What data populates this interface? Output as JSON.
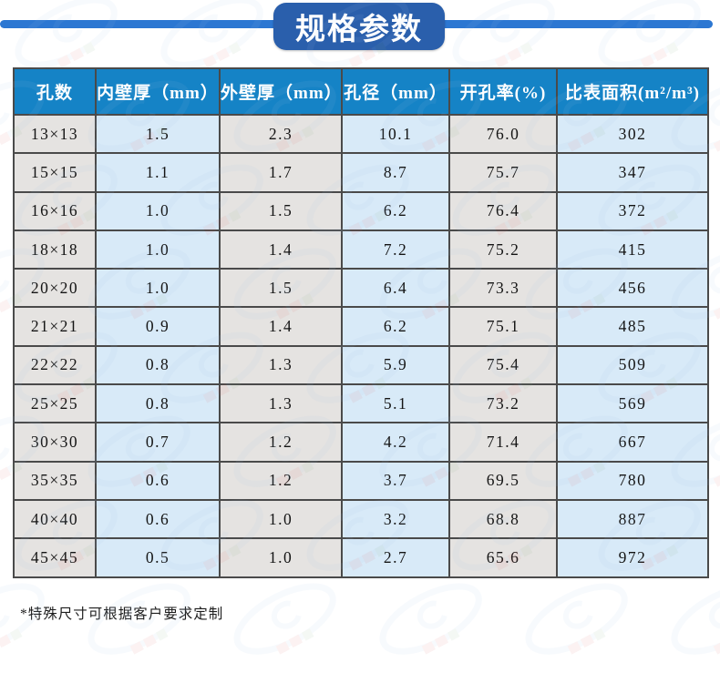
{
  "title": "规格参数",
  "table": {
    "columns": [
      "孔数",
      "内壁厚（mm）",
      "外壁厚（mm）",
      "孔径（mm）",
      "开孔率(%)",
      "比表面积(m²/m³)"
    ],
    "rows": [
      [
        "13×13",
        "1.5",
        "2.3",
        "10.1",
        "76.0",
        "302"
      ],
      [
        "15×15",
        "1.1",
        "1.7",
        "8.7",
        "75.7",
        "347"
      ],
      [
        "16×16",
        "1.0",
        "1.5",
        "6.2",
        "76.4",
        "372"
      ],
      [
        "18×18",
        "1.0",
        "1.4",
        "7.2",
        "75.2",
        "415"
      ],
      [
        "20×20",
        "1.0",
        "1.5",
        "6.4",
        "73.3",
        "456"
      ],
      [
        "21×21",
        "0.9",
        "1.4",
        "6.2",
        "75.1",
        "485"
      ],
      [
        "22×22",
        "0.8",
        "1.3",
        "5.9",
        "75.4",
        "509"
      ],
      [
        "25×25",
        "0.8",
        "1.3",
        "5.1",
        "73.2",
        "569"
      ],
      [
        "30×30",
        "0.7",
        "1.2",
        "4.2",
        "71.4",
        "667"
      ],
      [
        "35×35",
        "0.6",
        "1.2",
        "3.7",
        "69.5",
        "780"
      ],
      [
        "40×40",
        "0.6",
        "1.0",
        "3.2",
        "68.8",
        "887"
      ],
      [
        "45×45",
        "0.5",
        "1.0",
        "2.7",
        "65.6",
        "972"
      ]
    ]
  },
  "footnote": "*特殊尺寸可根据客户要求定制",
  "colors": {
    "header_bg": "#1583c6",
    "cell_gray": "#e5e3e1",
    "cell_blue": "#d8eaf8",
    "border": "#4a4a4a",
    "title_box": "#2a5fac",
    "title_line": "#2c77d2",
    "watermark_red": "#d86a6a",
    "watermark_blue": "#a9c6e6"
  }
}
